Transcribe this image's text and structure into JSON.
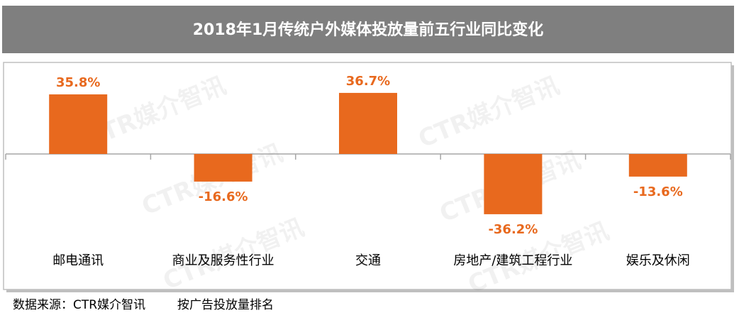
{
  "chart_data": {
    "type": "bar",
    "title": "2018年1月传统户外媒体投放量前五行业同比变化",
    "categories": [
      "邮电通讯",
      "商业及服务性行业",
      "交通",
      "房地产/建筑工程行业",
      "娱乐及休闲"
    ],
    "values": [
      35.8,
      -16.6,
      36.7,
      -36.2,
      -13.6
    ],
    "value_labels": [
      "35.8%",
      "-16.6%",
      "36.7%",
      "-36.2%",
      "-13.6%"
    ],
    "color": "#e8691e",
    "ylim": [
      -55,
      55
    ],
    "watermark": "CTR媒介智讯",
    "notes": [
      "数据来源：CTR媒介智讯",
      "按广告投放量排名"
    ]
  }
}
